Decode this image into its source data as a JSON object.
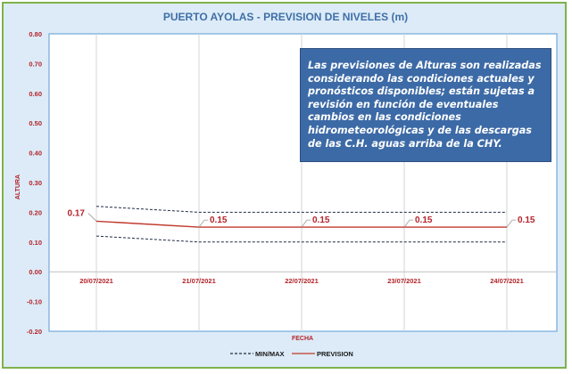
{
  "chart_data": {
    "type": "line",
    "title": "PUERTO AYOLAS - PREVISION DE NIVELES (m)",
    "xlabel": "FECHA",
    "ylabel": "ALTURA",
    "ylim": [
      -0.2,
      0.8
    ],
    "y_ticks": [
      "0.80",
      "0.70",
      "0.60",
      "0.50",
      "0.40",
      "0.30",
      "0.20",
      "0.10",
      "0.00",
      "-0.10",
      "-0.20"
    ],
    "categories": [
      "20/07/2021",
      "21/07/2021",
      "22/07/2021",
      "23/07/2021",
      "24/07/2021"
    ],
    "series": [
      {
        "name": "PREVISION",
        "values": [
          0.17,
          0.15,
          0.15,
          0.15,
          0.15
        ],
        "color": "#c0392b",
        "style": "solid"
      },
      {
        "name": "MIN/MAX",
        "role": "max",
        "values": [
          0.22,
          0.2,
          0.2,
          0.2,
          0.2
        ],
        "color": "#1f2a44",
        "style": "dashed"
      },
      {
        "name": "MIN/MAX",
        "role": "min",
        "values": [
          0.12,
          0.1,
          0.1,
          0.1,
          0.1
        ],
        "color": "#1f2a44",
        "style": "dashed"
      }
    ],
    "data_labels": [
      "0.17",
      "0.15",
      "0.15",
      "0.15",
      "0.15"
    ],
    "grid": "vertical",
    "legend_position": "bottom",
    "legend": [
      {
        "label": "MIN/MAX",
        "style": "dashed",
        "color": "#1f2a44"
      },
      {
        "label": "PREVISION",
        "style": "solid",
        "color": "#c0392b"
      }
    ]
  },
  "note": {
    "text": "Las previsiones de Alturas son realizadas considerando las condiciones actuales y pronósticos disponibles;  están sujetas a revisión en función de eventuales cambios en las condiciones hidrometeorológicas y de las descargas de las C.H. aguas arriba de la CHY."
  },
  "colors": {
    "background": "#dcebf7",
    "border": "#7fb24a",
    "plot_border": "#5b9bd5",
    "title": "#3f6fa8",
    "ticks": "#b4232a",
    "note_bg": "#3c6aa6"
  }
}
